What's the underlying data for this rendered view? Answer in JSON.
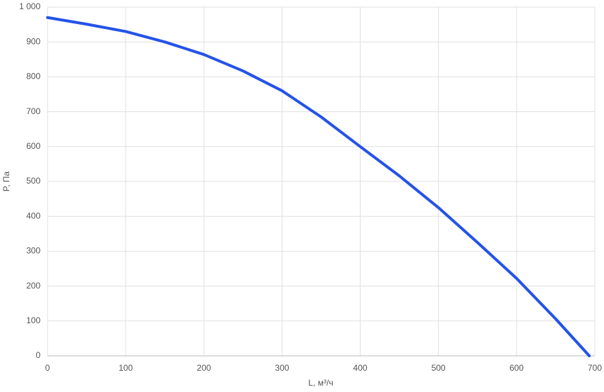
{
  "chart_data": {
    "type": "line",
    "x_label": "L, м³/ч",
    "y_label": "P, Па",
    "x": [
      0,
      50,
      100,
      150,
      200,
      250,
      300,
      350,
      400,
      450,
      500,
      550,
      600,
      650,
      693
    ],
    "series": [
      {
        "color": "#2553e8",
        "values": [
          970,
          951,
          930,
          900,
          864,
          817,
          760,
          685,
          600,
          516,
          425,
          325,
          222,
          106,
          0
        ]
      }
    ],
    "xlim": [
      0,
      700
    ],
    "xticks": [
      0,
      100,
      200,
      300,
      400,
      500,
      600,
      700
    ],
    "ylim": [
      0,
      1000
    ],
    "yticks": [
      0,
      100,
      200,
      300,
      400,
      500,
      600,
      700,
      800,
      900,
      {
        "value": 1000,
        "label": "1 000"
      }
    ],
    "grid": true
  }
}
